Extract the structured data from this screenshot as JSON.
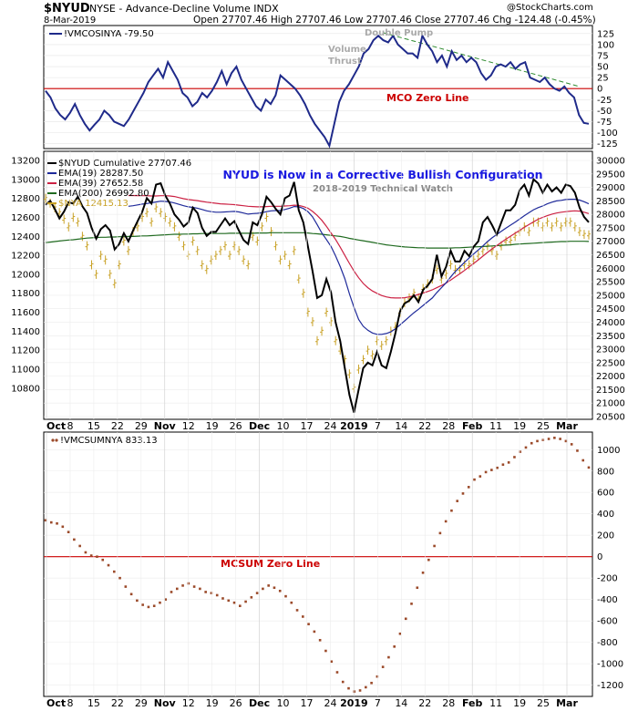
{
  "header": {
    "symbol": "$NYUD",
    "description": "NYSE - Advance-Decline Volume INDX",
    "date": "8-Mar-2019",
    "quote": "Open 27707.46  High 27707.46  Low 27707.46  Close 27707.46  Chg -124.48 (-0.45%)",
    "watermark": "@StockCharts.com"
  },
  "colors": {
    "mco_line": "#1f2a8a",
    "zero_line": "#cc0000",
    "cumulative": "#000000",
    "ema19": "#1f2a9a",
    "ema39": "#cc2244",
    "ema200": "#1f6a1f",
    "nya": "#c9a227",
    "mcsum_dots": "#9b4a2a",
    "trend": "#2e8b2e",
    "title_blue": "#1a1ae0",
    "annotation_gray": "#aaaaaa"
  },
  "chart_data": [
    {
      "type": "line",
      "panel": "MCO",
      "legend": "!VMCOSINYA -79.50",
      "ylim": [
        -130,
        135
      ],
      "yticks": [
        -125,
        -100,
        -75,
        -50,
        -25,
        0,
        25,
        50,
        75,
        100,
        125
      ],
      "zero_line_label": "MCO Zero Line",
      "annotations": [
        "Double Pump",
        "Volume Thrust"
      ],
      "trendline": [
        [
          69,
          127
        ],
        [
          109,
          5
        ]
      ],
      "values": [
        -5,
        -20,
        -45,
        -60,
        -70,
        -55,
        -35,
        -60,
        -80,
        -95,
        -82,
        -70,
        -50,
        -60,
        -75,
        -80,
        -85,
        -70,
        -50,
        -30,
        -10,
        15,
        30,
        45,
        25,
        60,
        40,
        20,
        -10,
        -20,
        -40,
        -30,
        -10,
        -20,
        -5,
        15,
        40,
        10,
        35,
        50,
        20,
        0,
        -20,
        -40,
        -50,
        -25,
        -35,
        -15,
        30,
        20,
        10,
        0,
        -15,
        -35,
        -60,
        -80,
        -95,
        -110,
        -130,
        -80,
        -30,
        -5,
        10,
        30,
        50,
        80,
        90,
        110,
        120,
        110,
        105,
        120,
        100,
        90,
        80,
        80,
        70,
        120,
        100,
        85,
        60,
        75,
        50,
        85,
        65,
        75,
        60,
        70,
        60,
        35,
        20,
        30,
        50,
        55,
        50,
        60,
        45,
        55,
        60,
        25,
        20,
        15,
        25,
        10,
        0,
        -5,
        5,
        -10,
        -20,
        -60,
        -78,
        -80
      ]
    },
    {
      "type": "line",
      "panel": "NYUD",
      "ylim_left": [
        10500,
        13200
      ],
      "ylim_right": [
        20500,
        30000
      ],
      "yticks_left": [
        10800,
        11000,
        11200,
        11400,
        11600,
        11800,
        12000,
        12200,
        12400,
        12600,
        12800,
        13000,
        13200
      ],
      "yticks_right": [
        20500,
        21000,
        21500,
        22000,
        22500,
        23000,
        23500,
        24000,
        24500,
        25000,
        25500,
        26000,
        26500,
        27000,
        27500,
        28000,
        28500,
        29000,
        29500,
        30000
      ],
      "title": "NYUD is Now in a Corrective Bullish Configuration",
      "subtitle": "2018-2019 Technical Watch",
      "series": [
        {
          "name": "$NYUD Cumulative 27707.46",
          "values": [
            28350,
            28500,
            28200,
            27850,
            28100,
            28450,
            28400,
            28650,
            28300,
            28050,
            27500,
            27100,
            27450,
            27600,
            27400,
            26700,
            26900,
            27300,
            27000,
            27400,
            27750,
            28100,
            28600,
            28400,
            29100,
            29150,
            28700,
            28400,
            28000,
            27800,
            27550,
            27700,
            28250,
            28050,
            27500,
            27200,
            27350,
            27350,
            27600,
            27850,
            27600,
            27750,
            27400,
            27050,
            26900,
            27700,
            27600,
            28000,
            28650,
            28450,
            28200,
            28000,
            28600,
            28700,
            29200,
            28150,
            27700,
            26800,
            25900,
            24900,
            25000,
            25600,
            25100,
            24000,
            23300,
            22300,
            21300,
            20650,
            21500,
            22300,
            22500,
            22400,
            22900,
            22400,
            22300,
            22900,
            23600,
            24400,
            24700,
            24800,
            25000,
            24750,
            25200,
            25350,
            25600,
            26500,
            25700,
            26050,
            26650,
            26250,
            26250,
            26650,
            26450,
            26800,
            27000,
            27700,
            27900,
            27600,
            27250,
            27700,
            28150,
            28150,
            28350,
            28900,
            29100,
            28700,
            29300,
            29150,
            28800,
            29100,
            28850,
            29000,
            28800,
            29100,
            29050,
            28800,
            28250,
            27900,
            27707
          ]
        },
        {
          "name": "EMA(19) 28287.50",
          "values": [
            null,
            null,
            null,
            null,
            null,
            null,
            null,
            null,
            null,
            null,
            null,
            null,
            null,
            null,
            null,
            null,
            null,
            null,
            28300,
            28320,
            28350,
            28380,
            28400,
            28430,
            28460,
            28490,
            28480,
            28460,
            28420,
            28370,
            28320,
            28280,
            28260,
            28230,
            28180,
            28130,
            28100,
            28080,
            28080,
            28090,
            28100,
            28110,
            28090,
            28050,
            28010,
            28030,
            28040,
            28060,
            28100,
            28130,
            28140,
            28140,
            28180,
            28230,
            28290,
            28280,
            28220,
            28100,
            27910,
            27620,
            27310,
            27070,
            26810,
            26460,
            26060,
            25620,
            25050,
            24550,
            24100,
            23850,
            23700,
            23600,
            23550,
            23550,
            23580,
            23640,
            23760,
            23900,
            24050,
            24200,
            24350,
            24480,
            24620,
            24760,
            24900,
            25100,
            25280,
            25460,
            25680,
            25880,
            26050,
            26220,
            26380,
            26530,
            26680,
            26830,
            26990,
            27130,
            27250,
            27370,
            27490,
            27600,
            27710,
            27830,
            27950,
            28060,
            28170,
            28250,
            28310,
            28390,
            28450,
            28500,
            28520,
            28550,
            28560,
            28560,
            28530,
            28470,
            28390
          ]
        },
        {
          "name": "EMA(39) 27652.58",
          "values": [
            null,
            null,
            null,
            null,
            null,
            null,
            null,
            null,
            null,
            null,
            null,
            null,
            null,
            null,
            null,
            null,
            null,
            null,
            28700,
            28700,
            28690,
            28690,
            28690,
            28680,
            28680,
            28690,
            28690,
            28680,
            28660,
            28620,
            28580,
            28550,
            28530,
            28510,
            28480,
            28450,
            28430,
            28410,
            28390,
            28380,
            28370,
            28360,
            28340,
            28320,
            28300,
            28290,
            28280,
            28280,
            28290,
            28300,
            28300,
            28300,
            28310,
            28320,
            28340,
            28330,
            28290,
            28230,
            28110,
            27960,
            27780,
            27560,
            27310,
            27070,
            26780,
            26480,
            26180,
            25900,
            25650,
            25440,
            25280,
            25160,
            25070,
            24990,
            24940,
            24910,
            24900,
            24900,
            24910,
            24940,
            24980,
            25030,
            25080,
            25140,
            25200,
            25280,
            25360,
            25450,
            25560,
            25680,
            25800,
            25920,
            26050,
            26180,
            26310,
            26450,
            26590,
            26720,
            26840,
            26960,
            27080,
            27190,
            27300,
            27410,
            27520,
            27620,
            27720,
            27820,
            27890,
            27950,
            28010,
            28050,
            28080,
            28100,
            28120,
            28130,
            28120,
            28080,
            28030
          ]
        },
        {
          "name": "EMA(200) 26992.80",
          "values": [
            26950,
            26970,
            26990,
            27010,
            27030,
            27050,
            27060,
            27080,
            27100,
            27120,
            27130,
            27140,
            27150,
            27150,
            27160,
            27160,
            27170,
            27170,
            27180,
            27180,
            27190,
            27200,
            27200,
            27210,
            27220,
            27230,
            27240,
            27250,
            27260,
            27260,
            27270,
            27270,
            27280,
            27280,
            27290,
            27290,
            27290,
            27290,
            27290,
            27290,
            27300,
            27300,
            27300,
            27300,
            27300,
            27300,
            27310,
            27310,
            27310,
            27320,
            27320,
            27320,
            27320,
            27320,
            27320,
            27320,
            27320,
            27310,
            27290,
            27280,
            27260,
            27240,
            27220,
            27200,
            27180,
            27150,
            27110,
            27080,
            27050,
            27020,
            26990,
            26960,
            26930,
            26900,
            26870,
            26850,
            26830,
            26810,
            26790,
            26780,
            26770,
            26760,
            26760,
            26750,
            26750,
            26750,
            26750,
            26750,
            26750,
            26760,
            26760,
            26770,
            26780,
            26790,
            26800,
            26810,
            26820,
            26830,
            26840,
            26850,
            26860,
            26870,
            26890,
            26900,
            26910,
            26920,
            26930,
            26940,
            26950,
            26960,
            26970,
            26980,
            26990,
            26990,
            27000,
            27000,
            27000,
            27000,
            26993
          ]
        },
        {
          "name": "$NYA 12415.13",
          "values": [
            12800,
            12750,
            12700,
            12650,
            12580,
            12500,
            12600,
            12550,
            12400,
            12300,
            12100,
            12000,
            12200,
            12150,
            12000,
            11900,
            12100,
            12350,
            12250,
            12450,
            12500,
            12600,
            12650,
            12550,
            12700,
            12650,
            12600,
            12550,
            12500,
            12400,
            12300,
            12200,
            12350,
            12250,
            12100,
            12050,
            12150,
            12200,
            12250,
            12300,
            12200,
            12300,
            12250,
            12150,
            12100,
            12400,
            12350,
            12500,
            12600,
            12450,
            12300,
            12150,
            12200,
            12100,
            12250,
            11950,
            11800,
            11600,
            11500,
            11300,
            11400,
            11600,
            11500,
            11300,
            11200,
            11100,
            10950,
            10800,
            11000,
            11100,
            11200,
            11150,
            11300,
            11250,
            11300,
            11400,
            11450,
            11600,
            11700,
            11750,
            11800,
            11750,
            11850,
            11900,
            11950,
            12050,
            11950,
            12000,
            12100,
            12050,
            12050,
            12100,
            12100,
            12150,
            12200,
            12250,
            12300,
            12250,
            12200,
            12300,
            12350,
            12350,
            12400,
            12450,
            12500,
            12450,
            12550,
            12550,
            12500,
            12550,
            12500,
            12550,
            12500,
            12550,
            12550,
            12500,
            12450,
            12420,
            12415
          ]
        }
      ]
    },
    {
      "type": "scatter",
      "panel": "MCSUM",
      "legend": "!VMCSUMNYA 833.13",
      "ylim": [
        -1280,
        1130
      ],
      "yticks": [
        -1200,
        -1000,
        -800,
        -600,
        -400,
        -200,
        0,
        200,
        400,
        600,
        800,
        1000
      ],
      "zero_line_label": "MCSUM Zero Line",
      "values": [
        340,
        320,
        310,
        280,
        230,
        160,
        100,
        40,
        10,
        0,
        -30,
        -80,
        -140,
        -200,
        -280,
        -350,
        -410,
        -450,
        -470,
        -460,
        -430,
        -400,
        -330,
        -300,
        -270,
        -250,
        -280,
        -300,
        -330,
        -340,
        -360,
        -390,
        -410,
        -430,
        -460,
        -420,
        -380,
        -340,
        -300,
        -270,
        -290,
        -320,
        -370,
        -430,
        -500,
        -560,
        -630,
        -700,
        -780,
        -880,
        -980,
        -1080,
        -1170,
        -1230,
        -1260,
        -1250,
        -1220,
        -1180,
        -1120,
        -1030,
        -940,
        -840,
        -720,
        -580,
        -440,
        -290,
        -150,
        -30,
        100,
        220,
        330,
        430,
        520,
        590,
        650,
        720,
        750,
        790,
        810,
        830,
        860,
        880,
        930,
        980,
        1020,
        1060,
        1080,
        1090,
        1100,
        1110,
        1100,
        1080,
        1050,
        990,
        900,
        833
      ]
    }
  ],
  "x_axis": {
    "labels": [
      "Oct",
      "8",
      "15",
      "22",
      "29",
      "Nov",
      "12",
      "19",
      "26",
      "Dec",
      "10",
      "17",
      "24",
      "2019",
      "7",
      "14",
      "22",
      "28",
      "Feb",
      "11",
      "19",
      "25",
      "Mar"
    ],
    "bold": [
      "Oct",
      "Nov",
      "Dec",
      "2019",
      "Feb",
      "Mar"
    ]
  }
}
